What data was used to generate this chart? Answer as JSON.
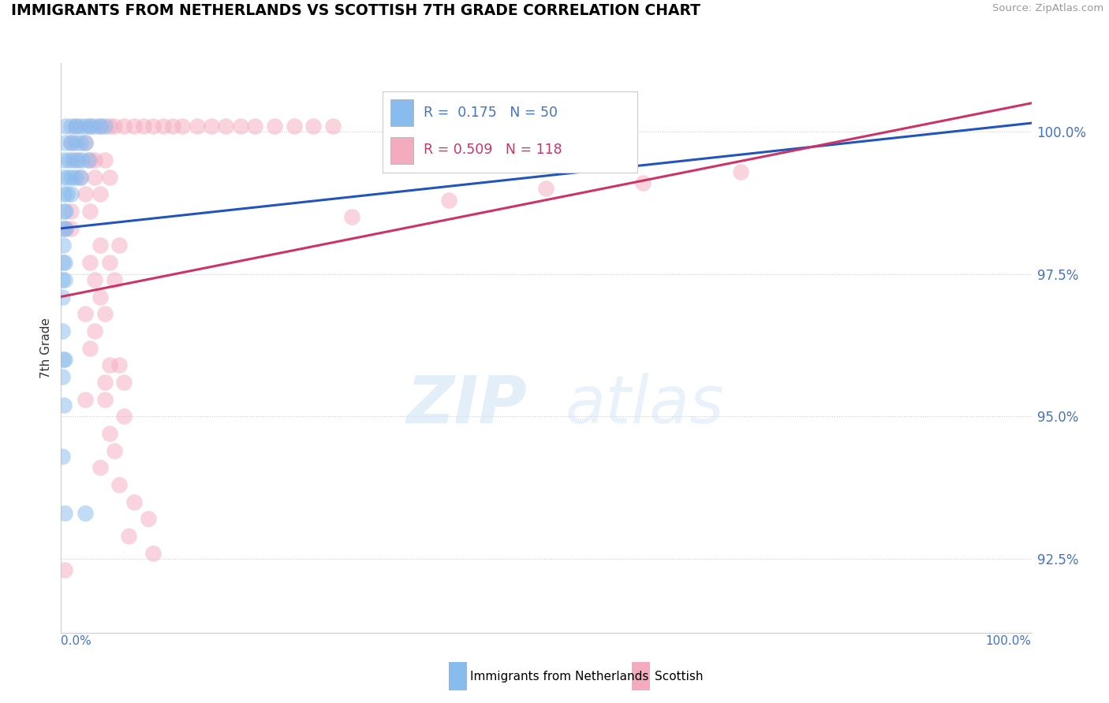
{
  "title": "IMMIGRANTS FROM NETHERLANDS VS SCOTTISH 7TH GRADE CORRELATION CHART",
  "source": "Source: ZipAtlas.com",
  "ylabel": "7th Grade",
  "xlim": [
    0.0,
    100.0
  ],
  "ylim": [
    91.2,
    101.2
  ],
  "yticks": [
    92.5,
    95.0,
    97.5,
    100.0
  ],
  "ytick_labels": [
    "92.5%",
    "95.0%",
    "97.5%",
    "100.0%"
  ],
  "blue_R": 0.175,
  "blue_N": 50,
  "pink_R": 0.509,
  "pink_N": 118,
  "blue_color": "#88bbee",
  "pink_color": "#f4aabf",
  "blue_line_color": "#2255bb",
  "pink_line_color": "#cc3366",
  "blue_line": [
    0.0,
    98.3,
    100.0,
    100.15
  ],
  "pink_line": [
    0.0,
    97.1,
    100.0,
    100.5
  ],
  "blue_scatter": [
    [
      0.5,
      100.1
    ],
    [
      1.0,
      100.1
    ],
    [
      1.5,
      100.1
    ],
    [
      2.0,
      100.1
    ],
    [
      2.5,
      100.1
    ],
    [
      3.0,
      100.1
    ],
    [
      3.5,
      100.1
    ],
    [
      4.0,
      100.1
    ],
    [
      4.5,
      100.1
    ],
    [
      0.5,
      99.8
    ],
    [
      1.0,
      99.8
    ],
    [
      1.5,
      99.8
    ],
    [
      2.0,
      99.8
    ],
    [
      2.5,
      99.8
    ],
    [
      0.3,
      99.5
    ],
    [
      0.8,
      99.5
    ],
    [
      1.2,
      99.5
    ],
    [
      1.8,
      99.5
    ],
    [
      2.2,
      99.5
    ],
    [
      2.8,
      99.5
    ],
    [
      0.3,
      99.2
    ],
    [
      0.7,
      99.2
    ],
    [
      1.1,
      99.2
    ],
    [
      1.5,
      99.2
    ],
    [
      2.0,
      99.2
    ],
    [
      0.3,
      98.9
    ],
    [
      0.6,
      98.9
    ],
    [
      1.0,
      98.9
    ],
    [
      0.3,
      98.6
    ],
    [
      0.5,
      98.6
    ],
    [
      0.2,
      98.3
    ],
    [
      0.5,
      98.3
    ],
    [
      0.2,
      98.0
    ],
    [
      0.2,
      97.7
    ],
    [
      0.4,
      97.7
    ],
    [
      0.15,
      97.4
    ],
    [
      0.35,
      97.4
    ],
    [
      0.15,
      97.1
    ],
    [
      0.12,
      96.5
    ],
    [
      0.2,
      96.0
    ],
    [
      0.4,
      96.0
    ],
    [
      0.12,
      95.7
    ],
    [
      0.3,
      95.2
    ],
    [
      0.12,
      94.3
    ],
    [
      0.4,
      93.3
    ],
    [
      2.5,
      93.3
    ]
  ],
  "pink_scatter": [
    [
      1.5,
      100.1
    ],
    [
      3.0,
      100.1
    ],
    [
      4.0,
      100.1
    ],
    [
      5.0,
      100.1
    ],
    [
      5.5,
      100.1
    ],
    [
      6.5,
      100.1
    ],
    [
      7.5,
      100.1
    ],
    [
      8.5,
      100.1
    ],
    [
      9.5,
      100.1
    ],
    [
      10.5,
      100.1
    ],
    [
      11.5,
      100.1
    ],
    [
      12.5,
      100.1
    ],
    [
      14.0,
      100.1
    ],
    [
      15.5,
      100.1
    ],
    [
      17.0,
      100.1
    ],
    [
      18.5,
      100.1
    ],
    [
      20.0,
      100.1
    ],
    [
      22.0,
      100.1
    ],
    [
      24.0,
      100.1
    ],
    [
      26.0,
      100.1
    ],
    [
      28.0,
      100.1
    ],
    [
      1.0,
      99.8
    ],
    [
      2.5,
      99.8
    ],
    [
      1.5,
      99.5
    ],
    [
      3.0,
      99.5
    ],
    [
      3.5,
      99.5
    ],
    [
      4.5,
      99.5
    ],
    [
      2.0,
      99.2
    ],
    [
      3.5,
      99.2
    ],
    [
      5.0,
      99.2
    ],
    [
      2.5,
      98.9
    ],
    [
      4.0,
      98.9
    ],
    [
      1.0,
      98.6
    ],
    [
      3.0,
      98.6
    ],
    [
      1.0,
      98.3
    ],
    [
      4.0,
      98.0
    ],
    [
      6.0,
      98.0
    ],
    [
      3.0,
      97.7
    ],
    [
      5.0,
      97.7
    ],
    [
      3.5,
      97.4
    ],
    [
      5.5,
      97.4
    ],
    [
      4.0,
      97.1
    ],
    [
      2.5,
      96.8
    ],
    [
      4.5,
      96.8
    ],
    [
      3.5,
      96.5
    ],
    [
      3.0,
      96.2
    ],
    [
      5.0,
      95.9
    ],
    [
      6.0,
      95.9
    ],
    [
      4.5,
      95.6
    ],
    [
      6.5,
      95.6
    ],
    [
      2.5,
      95.3
    ],
    [
      4.5,
      95.3
    ],
    [
      6.5,
      95.0
    ],
    [
      5.0,
      94.7
    ],
    [
      5.5,
      94.4
    ],
    [
      4.0,
      94.1
    ],
    [
      6.0,
      93.8
    ],
    [
      7.5,
      93.5
    ],
    [
      9.0,
      93.2
    ],
    [
      7.0,
      92.9
    ],
    [
      9.5,
      92.6
    ],
    [
      0.4,
      92.3
    ],
    [
      30.0,
      98.5
    ],
    [
      40.0,
      98.8
    ],
    [
      50.0,
      99.0
    ],
    [
      0.5,
      98.3
    ],
    [
      60.0,
      99.1
    ],
    [
      70.0,
      99.3
    ]
  ]
}
